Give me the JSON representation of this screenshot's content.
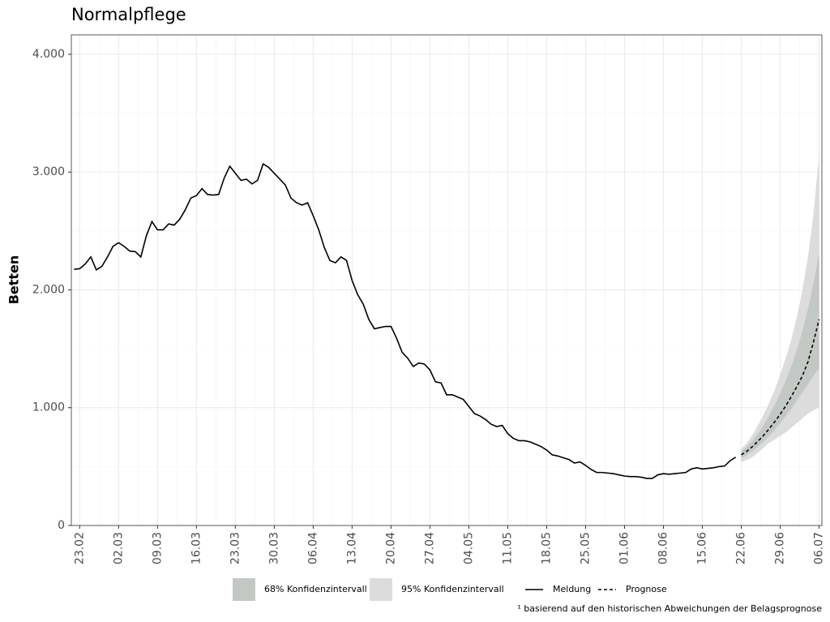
{
  "chart_data": {
    "type": "line",
    "title": "Normalpflege",
    "y_label": "Betten",
    "footnote": "¹ basierend auf den historischen Abweichungen der Belagsprognose",
    "xlim": [
      -1.5,
      133.5
    ],
    "ylim": [
      0,
      4165
    ],
    "xticks": [
      {
        "value": 0,
        "label": "23.02"
      },
      {
        "value": 7,
        "label": "02.03"
      },
      {
        "value": 14,
        "label": "09.03"
      },
      {
        "value": 21,
        "label": "16.03"
      },
      {
        "value": 28,
        "label": "23.03"
      },
      {
        "value": 35,
        "label": "30.03"
      },
      {
        "value": 42,
        "label": "06.04"
      },
      {
        "value": 49,
        "label": "13.04"
      },
      {
        "value": 56,
        "label": "20.04"
      },
      {
        "value": 63,
        "label": "27.04"
      },
      {
        "value": 70,
        "label": "04.05"
      },
      {
        "value": 77,
        "label": "11.05"
      },
      {
        "value": 84,
        "label": "18.05"
      },
      {
        "value": 91,
        "label": "25.05"
      },
      {
        "value": 98,
        "label": "01.06"
      },
      {
        "value": 105,
        "label": "08.06"
      },
      {
        "value": 112,
        "label": "15.06"
      },
      {
        "value": 119,
        "label": "22.06"
      },
      {
        "value": 126,
        "label": "29.06"
      },
      {
        "value": 133,
        "label": "06.07"
      }
    ],
    "yticks": [
      0,
      {
        "value": 1000,
        "label": "1.000"
      },
      {
        "value": 2000,
        "label": "2.000"
      },
      {
        "value": 3000,
        "label": "3.000"
      },
      {
        "value": 4000,
        "label": "4.000"
      }
    ],
    "grid": true,
    "bands": [
      {
        "name": "68% Konfidenzintervall",
        "color": "#c3c8c5",
        "x": [
          119,
          120,
          121,
          122,
          123,
          124,
          125,
          126,
          127,
          128,
          129,
          130,
          131,
          132,
          133
        ],
        "lower": [
          570,
          600,
          630,
          670,
          710,
          760,
          810,
          870,
          930,
          990,
          1060,
          1130,
          1200,
          1270,
          1330
        ],
        "upper": [
          630,
          670,
          720,
          780,
          850,
          930,
          1020,
          1120,
          1230,
          1350,
          1490,
          1650,
          1840,
          2060,
          2320
        ]
      },
      {
        "name": "95% Konfidenzintervall",
        "color": "#dcdcdc",
        "x": [
          119,
          120,
          121,
          122,
          123,
          124,
          125,
          126,
          127,
          128,
          129,
          130,
          131,
          132,
          133
        ],
        "lower": [
          540,
          555,
          580,
          620,
          660,
          700,
          730,
          760,
          790,
          830,
          870,
          910,
          950,
          980,
          1000
        ],
        "upper": [
          650,
          700,
          770,
          850,
          940,
          1040,
          1150,
          1280,
          1420,
          1580,
          1770,
          2000,
          2280,
          2650,
          3150
        ]
      }
    ],
    "series": [
      {
        "name": "Meldung",
        "color": "#000000",
        "dashed": false,
        "x": [
          -1,
          0,
          1,
          2,
          3,
          4,
          5,
          6,
          7,
          8,
          9,
          10,
          11,
          12,
          13,
          14,
          15,
          16,
          17,
          18,
          19,
          20,
          21,
          22,
          23,
          24,
          25,
          26,
          27,
          28,
          29,
          30,
          31,
          32,
          33,
          34,
          35,
          36,
          37,
          38,
          39,
          40,
          41,
          42,
          43,
          44,
          45,
          46,
          47,
          48,
          49,
          50,
          51,
          52,
          53,
          54,
          55,
          56,
          57,
          58,
          59,
          60,
          61,
          62,
          63,
          64,
          65,
          66,
          67,
          68,
          69,
          70,
          71,
          72,
          73,
          74,
          75,
          76,
          77,
          78,
          79,
          80,
          81,
          82,
          83,
          84,
          85,
          86,
          87,
          88,
          89,
          90,
          91,
          92,
          93,
          94,
          95,
          96,
          97,
          98,
          99,
          100,
          101,
          102,
          103,
          104,
          105,
          106,
          107,
          108,
          109,
          110,
          111,
          112,
          113,
          114,
          115,
          116,
          117,
          118
        ],
        "values": [
          2175,
          2180,
          2220,
          2280,
          2170,
          2200,
          2280,
          2370,
          2400,
          2370,
          2330,
          2325,
          2280,
          2460,
          2580,
          2510,
          2510,
          2560,
          2550,
          2600,
          2680,
          2780,
          2800,
          2860,
          2810,
          2805,
          2810,
          2950,
          3050,
          2990,
          2930,
          2940,
          2900,
          2930,
          3070,
          3040,
          2990,
          2940,
          2890,
          2780,
          2740,
          2720,
          2740,
          2630,
          2510,
          2360,
          2250,
          2230,
          2280,
          2250,
          2080,
          1960,
          1880,
          1750,
          1670,
          1680,
          1690,
          1690,
          1590,
          1470,
          1420,
          1350,
          1380,
          1370,
          1320,
          1220,
          1210,
          1110,
          1110,
          1090,
          1070,
          1010,
          950,
          930,
          900,
          860,
          840,
          850,
          780,
          740,
          720,
          720,
          710,
          690,
          670,
          640,
          600,
          590,
          575,
          560,
          530,
          540,
          510,
          475,
          450,
          450,
          445,
          440,
          430,
          420,
          415,
          415,
          410,
          400,
          400,
          430,
          440,
          435,
          440,
          445,
          450,
          480,
          490,
          480,
          485,
          490,
          500,
          505,
          550,
          580
        ]
      },
      {
        "name": "Prognose",
        "color": "#000000",
        "dashed": true,
        "x": [
          119,
          120,
          121,
          122,
          123,
          124,
          125,
          126,
          127,
          128,
          129,
          130,
          131,
          132,
          133
        ],
        "values": [
          600,
          630,
          670,
          715,
          765,
          820,
          880,
          945,
          1015,
          1095,
          1180,
          1270,
          1390,
          1560,
          1750
        ]
      }
    ]
  }
}
